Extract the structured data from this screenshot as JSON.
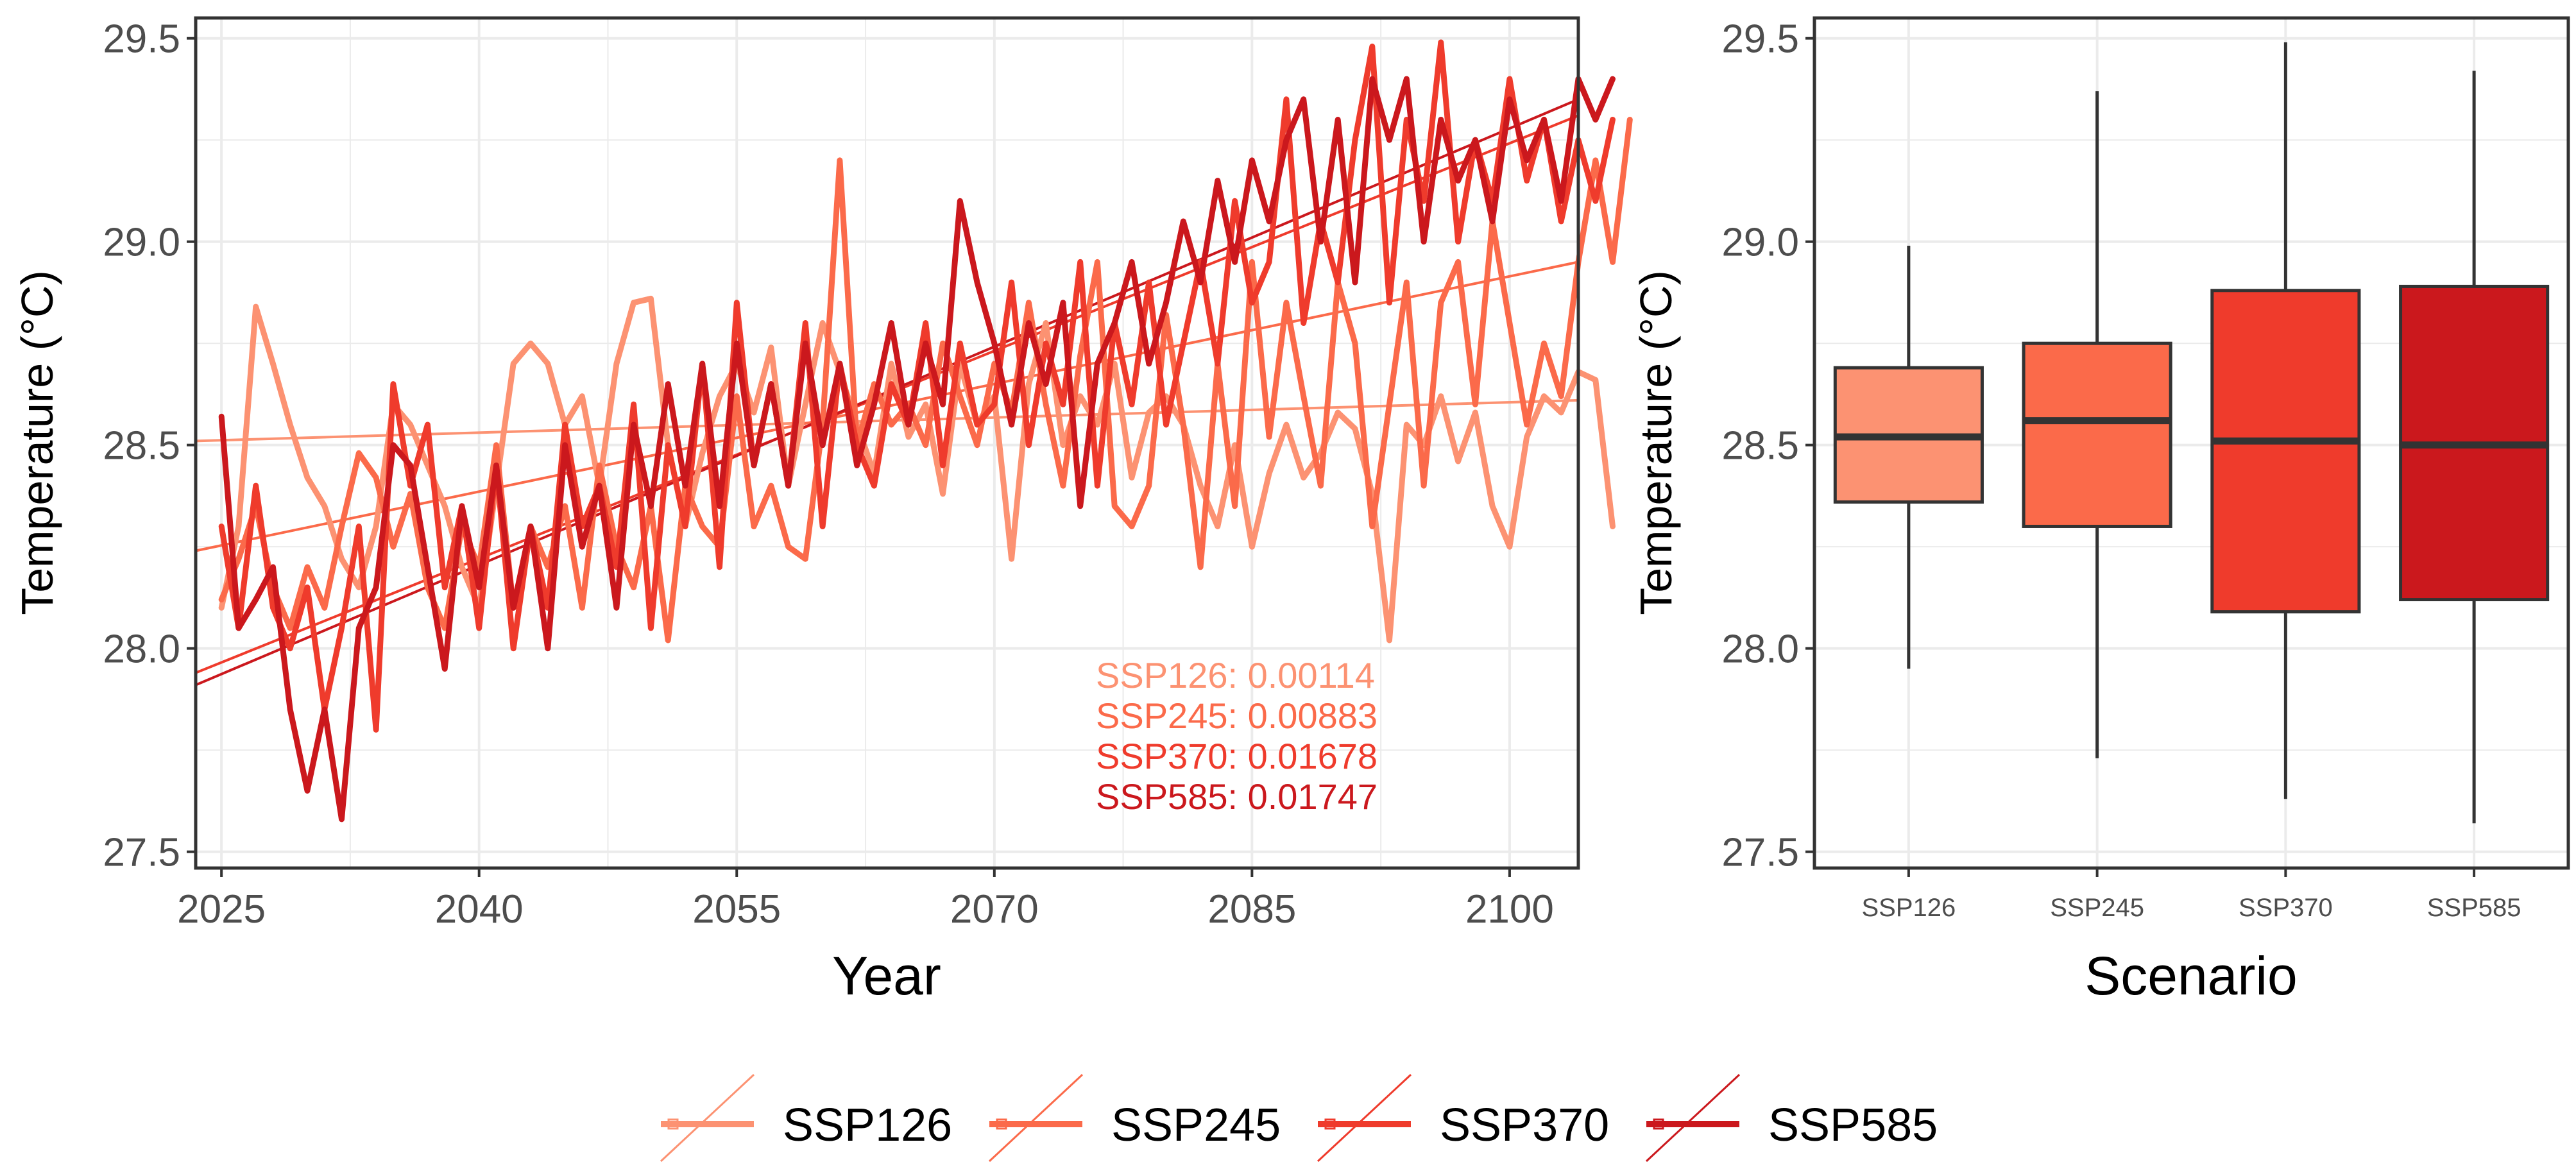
{
  "colors": {
    "SSP126": "#FC9272",
    "SSP245": "#FB6A4A",
    "SSP370": "#EF3B2C",
    "SSP585": "#CB181D",
    "grid": "#EBEBEB",
    "axis_text": "#4D4D4D",
    "frame": "#333333"
  },
  "legend": {
    "entries": [
      "SSP126",
      "SSP245",
      "SSP370",
      "SSP585"
    ],
    "placement": "bottom"
  },
  "chart_data": [
    {
      "type": "line",
      "panel": "left",
      "title": "",
      "xlabel": "Year",
      "ylabel": "Temperature (°C)",
      "xlim": [
        2023.5,
        2104
      ],
      "ylim": [
        27.46,
        29.55
      ],
      "xticks": [
        2025,
        2040,
        2055,
        2070,
        2085,
        2100
      ],
      "yticks": [
        27.5,
        28.0,
        28.5,
        29.0,
        29.5
      ],
      "ytick_labels": [
        "27.5",
        "28.0",
        "28.5",
        "29.0",
        "29.5"
      ],
      "grid": true,
      "x_start": 2025,
      "series": [
        {
          "name": "SSP126",
          "values": [
            28.1,
            28.3,
            28.84,
            28.7,
            28.55,
            28.42,
            28.35,
            28.22,
            28.15,
            28.3,
            28.6,
            28.55,
            28.45,
            28.35,
            28.2,
            28.1,
            28.4,
            28.7,
            28.75,
            28.7,
            28.55,
            28.62,
            28.4,
            28.7,
            28.85,
            28.86,
            28.5,
            28.3,
            28.48,
            28.62,
            28.7,
            28.58,
            28.74,
            28.4,
            28.6,
            28.8,
            28.68,
            28.55,
            28.43,
            28.7,
            28.52,
            28.6,
            28.38,
            28.7,
            28.55,
            28.62,
            28.22,
            28.65,
            28.8,
            28.5,
            28.62,
            28.55,
            28.7,
            28.42,
            28.58,
            28.62,
            28.55,
            28.4,
            28.3,
            28.5,
            28.25,
            28.43,
            28.55,
            28.42,
            28.48,
            28.58,
            28.54,
            28.38,
            28.02,
            28.55,
            28.5,
            28.62,
            28.46,
            28.58,
            28.35,
            28.25,
            28.52,
            28.62,
            28.58,
            28.68,
            28.66,
            28.3
          ]
        },
        {
          "name": "SSP245",
          "values": [
            28.12,
            28.22,
            28.35,
            28.15,
            28.05,
            28.2,
            28.1,
            28.3,
            28.48,
            28.42,
            28.25,
            28.38,
            28.15,
            28.05,
            28.3,
            28.2,
            28.5,
            28.1,
            28.3,
            28.2,
            28.35,
            28.1,
            28.45,
            28.25,
            28.15,
            28.35,
            28.02,
            28.4,
            28.3,
            28.25,
            28.62,
            28.3,
            28.4,
            28.25,
            28.22,
            28.55,
            29.2,
            28.5,
            28.65,
            28.55,
            28.6,
            28.5,
            28.75,
            28.62,
            28.5,
            28.7,
            28.58,
            28.85,
            28.6,
            28.4,
            28.72,
            28.95,
            28.35,
            28.3,
            28.4,
            28.82,
            28.55,
            28.2,
            28.7,
            28.35,
            28.95,
            28.52,
            28.85,
            28.62,
            28.4,
            28.9,
            28.75,
            28.3,
            28.6,
            28.9,
            28.4,
            28.85,
            28.95,
            28.6,
            29.05,
            28.8,
            28.55,
            28.75,
            28.62,
            28.95,
            29.2,
            28.95,
            29.3
          ]
        },
        {
          "name": "SSP370",
          "values": [
            28.3,
            28.05,
            28.4,
            28.1,
            28.0,
            28.15,
            27.85,
            28.05,
            28.3,
            27.8,
            28.65,
            28.4,
            28.55,
            28.15,
            28.35,
            28.05,
            28.45,
            28.0,
            28.3,
            28.1,
            28.55,
            28.3,
            28.4,
            28.2,
            28.6,
            28.05,
            28.5,
            28.3,
            28.7,
            28.2,
            28.85,
            28.45,
            28.65,
            28.4,
            28.8,
            28.3,
            28.7,
            28.5,
            28.4,
            28.65,
            28.55,
            28.8,
            28.45,
            28.75,
            28.55,
            28.6,
            28.9,
            28.5,
            28.75,
            28.6,
            28.95,
            28.4,
            28.8,
            28.6,
            28.9,
            28.55,
            28.75,
            28.95,
            28.7,
            29.1,
            28.85,
            28.95,
            29.35,
            28.8,
            29.05,
            28.9,
            29.25,
            29.48,
            28.85,
            29.3,
            29.1,
            29.49,
            29.0,
            29.25,
            29.1,
            29.4,
            29.15,
            29.3,
            29.05,
            29.25,
            29.1,
            29.3
          ]
        },
        {
          "name": "SSP585",
          "values": [
            28.57,
            28.05,
            28.12,
            28.2,
            27.85,
            27.65,
            27.85,
            27.58,
            28.05,
            28.15,
            28.5,
            28.45,
            28.2,
            27.95,
            28.35,
            28.15,
            28.45,
            28.1,
            28.3,
            28.0,
            28.5,
            28.25,
            28.4,
            28.1,
            28.55,
            28.35,
            28.65,
            28.4,
            28.7,
            28.35,
            28.75,
            28.45,
            28.65,
            28.4,
            28.75,
            28.5,
            28.7,
            28.45,
            28.6,
            28.8,
            28.55,
            28.75,
            28.6,
            29.1,
            28.9,
            28.75,
            28.55,
            28.8,
            28.65,
            28.85,
            28.35,
            28.7,
            28.8,
            28.95,
            28.7,
            28.85,
            29.05,
            28.9,
            29.15,
            28.95,
            29.2,
            29.05,
            29.25,
            29.35,
            29.0,
            29.3,
            28.9,
            29.4,
            29.25,
            29.4,
            29.0,
            29.3,
            29.15,
            29.25,
            29.05,
            29.35,
            29.2,
            29.3,
            29.1,
            29.4,
            29.3,
            29.4
          ]
        }
      ],
      "trend_lines": [
        {
          "name": "SSP126",
          "slope": 0.00114,
          "y_at_2023_5": 28.51,
          "y_at_2104": 28.61
        },
        {
          "name": "SSP245",
          "slope": 0.00883,
          "y_at_2023_5": 28.24,
          "y_at_2104": 28.95
        },
        {
          "name": "SSP370",
          "slope": 0.01678,
          "y_at_2023_5": 27.94,
          "y_at_2104": 29.31
        },
        {
          "name": "SSP585",
          "slope": 0.01747,
          "y_at_2023_5": 27.91,
          "y_at_2104": 29.35
        }
      ],
      "annotations": [
        "SSP126: 0.00114",
        "SSP245: 0.00883",
        "SSP370: 0.01678",
        "SSP585: 0.01747"
      ]
    },
    {
      "type": "box",
      "panel": "right",
      "title": "",
      "xlabel": "Scenario",
      "ylabel": "Temperature (°C)",
      "ylim": [
        27.46,
        29.55
      ],
      "yticks": [
        27.5,
        28.0,
        28.5,
        29.0,
        29.5
      ],
      "ytick_labels": [
        "27.5",
        "28.0",
        "28.5",
        "29.0",
        "29.5"
      ],
      "grid": true,
      "categories": [
        "SSP126",
        "SSP245",
        "SSP370",
        "SSP585"
      ],
      "boxes": [
        {
          "name": "SSP126",
          "min": 27.95,
          "q1": 28.36,
          "median": 28.52,
          "q3": 28.69,
          "max": 28.99
        },
        {
          "name": "SSP245",
          "min": 27.73,
          "q1": 28.3,
          "median": 28.56,
          "q3": 28.75,
          "max": 29.37
        },
        {
          "name": "SSP370",
          "min": 27.63,
          "q1": 28.09,
          "median": 28.51,
          "q3": 28.88,
          "max": 29.49
        },
        {
          "name": "SSP585",
          "min": 27.57,
          "q1": 28.12,
          "median": 28.5,
          "q3": 28.89,
          "max": 29.42
        }
      ]
    }
  ]
}
